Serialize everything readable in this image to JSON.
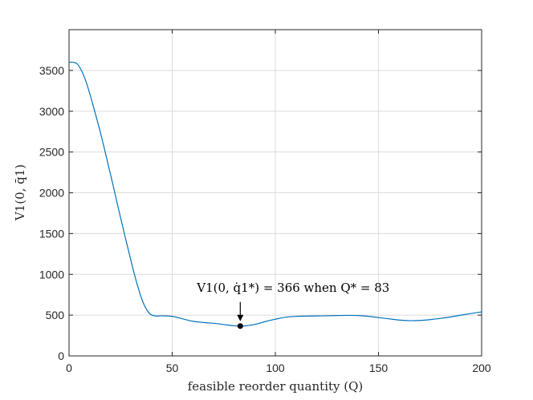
{
  "chart_data": {
    "type": "line",
    "xlabel": "feasible reorder quantity (Q)",
    "ylabel": "V1(0, q̄1)",
    "xlim": [
      0,
      200
    ],
    "ylim": [
      0,
      4000
    ],
    "xticks": [
      0,
      50,
      100,
      150,
      200
    ],
    "yticks": [
      0,
      500,
      1000,
      1500,
      2000,
      2500,
      3000,
      3500
    ],
    "grid": true,
    "series": [
      {
        "color": "#0072BD",
        "x": [
          0,
          2,
          4,
          6,
          8,
          10,
          12,
          15,
          18,
          21,
          24,
          27,
          30,
          33,
          36,
          39,
          42,
          45,
          50,
          55,
          60,
          65,
          70,
          75,
          80,
          83,
          86,
          90,
          95,
          100,
          105,
          110,
          115,
          120,
          125,
          130,
          135,
          140,
          145,
          150,
          155,
          160,
          165,
          170,
          175,
          180,
          185,
          190,
          195,
          200
        ],
        "y": [
          3600,
          3600,
          3580,
          3500,
          3380,
          3220,
          3040,
          2760,
          2450,
          2130,
          1800,
          1480,
          1170,
          880,
          650,
          520,
          490,
          492,
          485,
          455,
          425,
          410,
          400,
          385,
          370,
          366,
          370,
          385,
          420,
          450,
          475,
          485,
          488,
          490,
          492,
          495,
          497,
          495,
          485,
          470,
          455,
          440,
          432,
          435,
          445,
          460,
          478,
          500,
          520,
          540
        ]
      }
    ],
    "annotations": [
      {
        "text": "V1(0, q̇1*) = 366 when Q* = 83",
        "x": 83,
        "y": 366
      }
    ]
  }
}
